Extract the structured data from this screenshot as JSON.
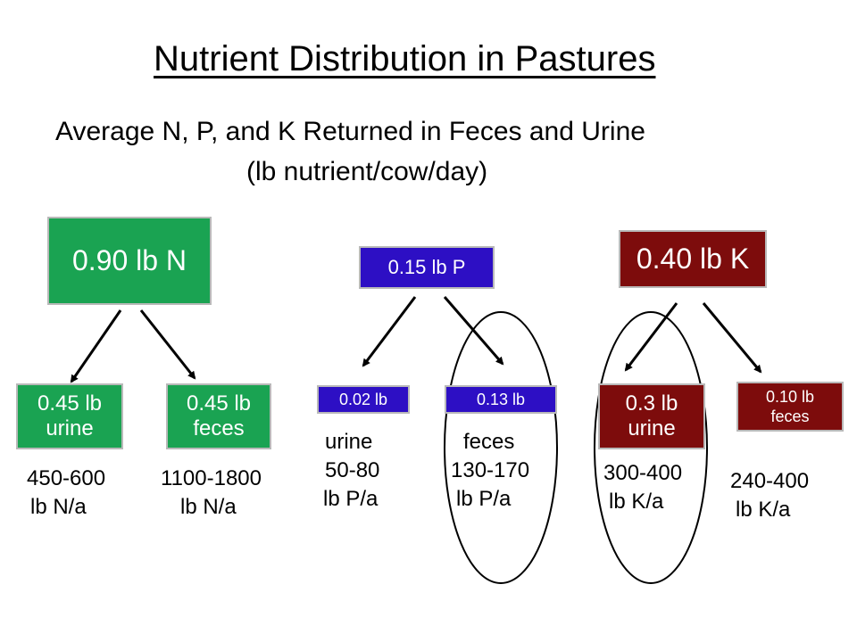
{
  "title": "Nutrient Distribution in Pastures",
  "subtitle_line1": "Average N, P, and K Returned in Feces and Urine",
  "subtitle_line2": "(lb nutrient/cow/day)",
  "colors": {
    "nitrogen": "#1aa352",
    "phosphorus": "#2d0fc4",
    "potassium": "#7d0c0c"
  },
  "nitrogen": {
    "total": "0.90 lb N",
    "urine_box": [
      "0.45 lb",
      "urine"
    ],
    "feces_box": [
      "0.45 lb",
      "feces"
    ],
    "urine_rate": [
      "450-600",
      "lb N/a"
    ],
    "feces_rate": [
      "1100-1800",
      "lb N/a"
    ]
  },
  "phosphorus": {
    "total": "0.15 lb P",
    "urine_box": "0.02 lb",
    "feces_box": "0.13 lb",
    "urine_rate": [
      "urine",
      "50-80",
      "lb P/a"
    ],
    "feces_rate": [
      "feces",
      "130-170",
      "lb P/a"
    ]
  },
  "potassium": {
    "total": "0.40 lb K",
    "urine_box": [
      "0.3 lb",
      "urine"
    ],
    "feces_box": [
      "0.10 lb",
      "feces"
    ],
    "urine_rate": [
      "300-400",
      "lb K/a"
    ],
    "feces_rate": [
      "240-400",
      "lb K/a"
    ]
  }
}
